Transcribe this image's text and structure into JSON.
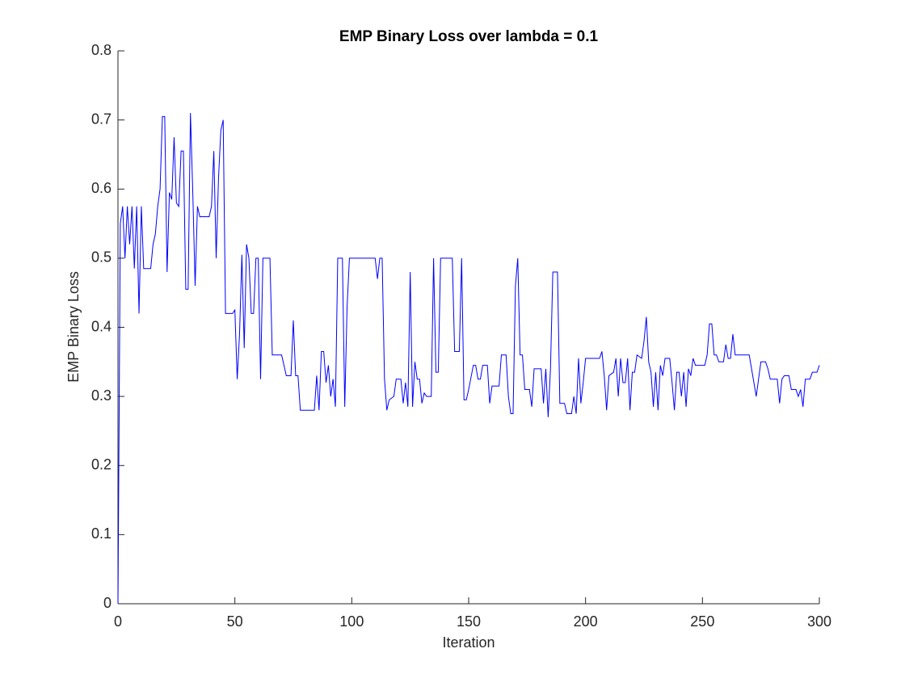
{
  "chart_data": {
    "type": "line",
    "title": "EMP Binary Loss over lambda = 0.1",
    "x_label": "Iteration",
    "y_label": "EMP Binary Loss",
    "x": [
      0,
      1,
      2,
      3,
      4,
      5,
      6,
      7,
      8,
      9,
      10,
      11,
      14,
      15,
      16,
      17,
      18,
      19,
      20,
      21,
      22,
      23,
      24,
      25,
      26,
      27,
      28,
      29,
      30,
      31,
      32,
      33,
      34,
      35,
      39,
      40,
      41,
      42,
      43,
      44,
      45,
      46,
      49,
      50,
      51,
      52,
      53,
      54,
      55,
      56,
      57,
      58,
      59,
      60,
      61,
      62,
      65,
      66,
      70,
      72,
      74,
      75,
      76,
      77,
      78,
      84,
      85,
      86,
      87,
      88,
      89,
      90,
      91,
      92,
      93,
      94,
      96,
      97,
      98,
      99,
      110,
      111,
      112,
      113,
      114,
      115,
      116,
      118,
      119,
      121,
      122,
      123,
      124,
      125,
      126,
      127,
      128,
      129,
      130,
      131,
      132,
      134,
      135,
      136,
      137,
      138,
      143,
      144,
      146,
      147,
      148,
      149,
      150,
      152,
      153,
      154,
      155,
      156,
      158,
      159,
      160,
      163,
      164,
      166,
      167,
      168,
      169,
      170,
      171,
      172,
      173,
      174,
      176,
      177,
      178,
      181,
      182,
      183,
      184,
      185,
      186,
      188,
      189,
      191,
      192,
      194,
      195,
      196,
      197,
      198,
      199,
      200,
      206,
      207,
      208,
      209,
      210,
      212,
      213,
      214,
      215,
      216,
      217,
      218,
      219,
      220,
      221,
      222,
      224,
      225,
      226,
      227,
      228,
      229,
      230,
      231,
      232,
      233,
      234,
      236,
      237,
      238,
      239,
      240,
      241,
      242,
      243,
      244,
      245,
      246,
      247,
      251,
      252,
      253,
      254,
      255,
      256,
      257,
      259,
      260,
      261,
      262,
      263,
      264,
      270,
      272,
      273,
      274,
      275,
      277,
      278,
      279,
      282,
      283,
      284,
      285,
      287,
      288,
      290,
      291,
      292,
      293,
      294,
      296,
      297,
      299,
      300
    ],
    "values": [
      0,
      0.55,
      0.575,
      0.5,
      0.575,
      0.52,
      0.575,
      0.485,
      0.575,
      0.42,
      0.575,
      0.485,
      0.485,
      0.52,
      0.535,
      0.575,
      0.6,
      0.705,
      0.705,
      0.48,
      0.595,
      0.585,
      0.675,
      0.58,
      0.575,
      0.655,
      0.655,
      0.455,
      0.455,
      0.71,
      0.595,
      0.46,
      0.575,
      0.56,
      0.56,
      0.575,
      0.655,
      0.5,
      0.615,
      0.685,
      0.7,
      0.42,
      0.42,
      0.425,
      0.325,
      0.39,
      0.505,
      0.37,
      0.52,
      0.5,
      0.42,
      0.42,
      0.5,
      0.5,
      0.325,
      0.5,
      0.5,
      0.36,
      0.36,
      0.33,
      0.33,
      0.41,
      0.33,
      0.33,
      0.28,
      0.28,
      0.33,
      0.28,
      0.365,
      0.365,
      0.32,
      0.345,
      0.3,
      0.325,
      0.285,
      0.5,
      0.5,
      0.285,
      0.43,
      0.5,
      0.5,
      0.47,
      0.5,
      0.5,
      0.325,
      0.28,
      0.295,
      0.3,
      0.325,
      0.325,
      0.29,
      0.32,
      0.285,
      0.48,
      0.285,
      0.35,
      0.325,
      0.325,
      0.29,
      0.305,
      0.3,
      0.3,
      0.5,
      0.335,
      0.335,
      0.5,
      0.5,
      0.365,
      0.365,
      0.5,
      0.295,
      0.295,
      0.31,
      0.345,
      0.345,
      0.325,
      0.325,
      0.345,
      0.345,
      0.29,
      0.315,
      0.315,
      0.36,
      0.36,
      0.3,
      0.275,
      0.275,
      0.46,
      0.5,
      0.36,
      0.36,
      0.31,
      0.31,
      0.285,
      0.34,
      0.34,
      0.29,
      0.34,
      0.27,
      0.34,
      0.48,
      0.48,
      0.29,
      0.29,
      0.275,
      0.275,
      0.3,
      0.275,
      0.355,
      0.29,
      0.32,
      0.355,
      0.355,
      0.365,
      0.33,
      0.28,
      0.33,
      0.335,
      0.355,
      0.3,
      0.355,
      0.32,
      0.32,
      0.355,
      0.28,
      0.335,
      0.335,
      0.36,
      0.355,
      0.38,
      0.415,
      0.35,
      0.335,
      0.285,
      0.335,
      0.28,
      0.345,
      0.33,
      0.355,
      0.355,
      0.32,
      0.28,
      0.335,
      0.335,
      0.3,
      0.335,
      0.285,
      0.34,
      0.33,
      0.355,
      0.345,
      0.345,
      0.36,
      0.405,
      0.405,
      0.36,
      0.36,
      0.35,
      0.35,
      0.375,
      0.355,
      0.355,
      0.39,
      0.36,
      0.36,
      0.32,
      0.3,
      0.325,
      0.35,
      0.35,
      0.34,
      0.325,
      0.325,
      0.29,
      0.325,
      0.33,
      0.33,
      0.31,
      0.31,
      0.3,
      0.31,
      0.285,
      0.325,
      0.325,
      0.335,
      0.335,
      0.345
    ],
    "color": "#0000ff",
    "xlim": [
      0,
      300
    ],
    "xticks": [
      0,
      50,
      100,
      150,
      200,
      250,
      300
    ],
    "ylim": [
      0,
      0.8
    ],
    "yticks": [
      0,
      0.1,
      0.2,
      0.3,
      0.4,
      0.5,
      0.6,
      0.7,
      0.8
    ]
  }
}
